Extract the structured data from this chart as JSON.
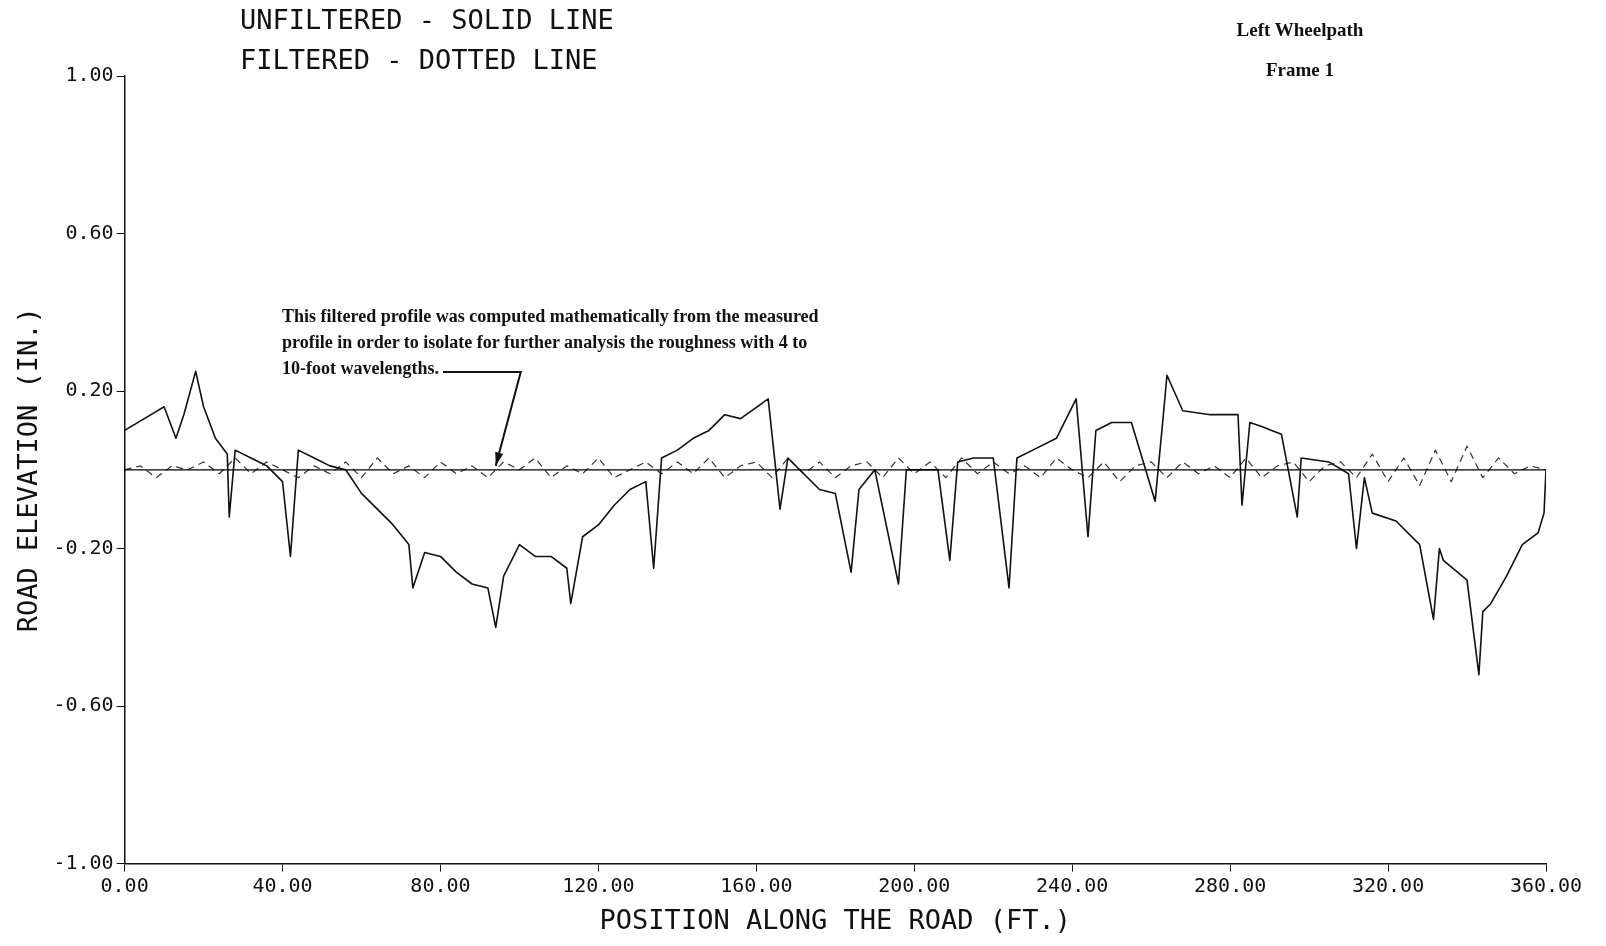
{
  "chart_data": {
    "type": "line",
    "title": "Left Wheelpath",
    "subtitle": "Frame 1",
    "xlabel": "POSITION ALONG THE ROAD (FT.)",
    "ylabel": "ROAD ELEVATION (IN.)",
    "annotations": [
      "UNFILTERED - SOLID LINE",
      "FILTERED - DOTTED LINE",
      {
        "text": "This filtered profile was computed mathematically from the measured profile in order to isolate for further analysis the roughness with 4 to 10-foot wavelengths.",
        "x": 94,
        "y": 0
      }
    ],
    "xlim": [
      0,
      360
    ],
    "xticks": [
      {
        "value": 0,
        "label": "0.00"
      },
      {
        "value": 40,
        "label": "40.00"
      },
      {
        "value": 80,
        "label": "80.00"
      },
      {
        "value": 120,
        "label": "120.00"
      },
      {
        "value": 160,
        "label": "160.00"
      },
      {
        "value": 200,
        "label": "200.00"
      },
      {
        "value": 240,
        "label": "240.00"
      },
      {
        "value": 280,
        "label": "280.00"
      },
      {
        "value": 320,
        "label": "320.00"
      },
      {
        "value": 360,
        "label": "360.00"
      }
    ],
    "ylim": [
      -1,
      1
    ],
    "yticks": [
      {
        "value": -1,
        "label": "-1.00"
      },
      {
        "value": -0.6,
        "label": "-0.60"
      },
      {
        "value": -0.2,
        "label": "-0.20"
      },
      {
        "value": 0.2,
        "label": "0.20"
      },
      {
        "value": 0.6,
        "label": "0.60"
      },
      {
        "value": 1,
        "label": "1.00"
      }
    ],
    "grid": false,
    "legend": false,
    "marker": "none",
    "ref_lines": [
      {
        "axis": "y",
        "value": 0,
        "color": "#000000"
      }
    ],
    "series": [
      {
        "color": "#111111",
        "line_style": "solid",
        "x": [
          0,
          5,
          10,
          13,
          15,
          18,
          20,
          23,
          26,
          26.5,
          28,
          32,
          36,
          40,
          42,
          44,
          48,
          52,
          56,
          60,
          64,
          68,
          72,
          73,
          76,
          80,
          84,
          88,
          92,
          94,
          96,
          100,
          104,
          108,
          112,
          113,
          116,
          120,
          124,
          128,
          132,
          134,
          136,
          140,
          144,
          148,
          152,
          156,
          163,
          166,
          168,
          172,
          176,
          180,
          184,
          186,
          190,
          196,
          198,
          202,
          206,
          209,
          211,
          215,
          220,
          224,
          226,
          230,
          236,
          241,
          244,
          246,
          250,
          255,
          261,
          263,
          264,
          268,
          275,
          282,
          283,
          285,
          288,
          293,
          297,
          298,
          305,
          310,
          312,
          314,
          316,
          322,
          328,
          331.5,
          333,
          334,
          340,
          343,
          344,
          346,
          350,
          354,
          358,
          359.5,
          360
        ],
        "values": [
          0.1,
          0.13,
          0.16,
          0.08,
          0.14,
          0.25,
          0.16,
          0.08,
          0.04,
          -0.12,
          0.05,
          0.03,
          0.01,
          -0.03,
          -0.22,
          0.05,
          0.03,
          0.01,
          0,
          -0.06,
          -0.1,
          -0.14,
          -0.19,
          -0.3,
          -0.21,
          -0.22,
          -0.26,
          -0.29,
          -0.3,
          -0.4,
          -0.27,
          -0.19,
          -0.22,
          -0.22,
          -0.25,
          -0.34,
          -0.17,
          -0.14,
          -0.09,
          -0.05,
          -0.03,
          -0.25,
          0.03,
          0.05,
          0.08,
          0.1,
          0.14,
          0.13,
          0.18,
          -0.1,
          0.03,
          -0.01,
          -0.05,
          -0.06,
          -0.26,
          -0.05,
          0,
          -0.29,
          0,
          0,
          0,
          -0.23,
          0.02,
          0.03,
          0.03,
          -0.3,
          0.03,
          0.05,
          0.08,
          0.18,
          -0.17,
          0.1,
          0.12,
          0.12,
          -0.08,
          0.13,
          0.24,
          0.15,
          0.14,
          0.14,
          -0.09,
          0.12,
          0.11,
          0.09,
          -0.12,
          0.03,
          0.02,
          -0.01,
          -0.2,
          -0.02,
          -0.11,
          -0.13,
          -0.19,
          -0.38,
          -0.2,
          -0.23,
          -0.28,
          -0.52,
          -0.36,
          -0.34,
          -0.27,
          -0.19,
          -0.16,
          -0.11,
          0
        ]
      },
      {
        "color": "#333333",
        "line_style": "dashed",
        "x": [
          0,
          4,
          8,
          12,
          16,
          20,
          24,
          28,
          32,
          36,
          40,
          44,
          48,
          52,
          56,
          60,
          64,
          68,
          72,
          76,
          80,
          84,
          88,
          92,
          96,
          100,
          104,
          108,
          112,
          116,
          120,
          124,
          128,
          132,
          136,
          140,
          144,
          148,
          152,
          156,
          160,
          164,
          168,
          172,
          176,
          180,
          184,
          188,
          192,
          196,
          200,
          204,
          208,
          212,
          216,
          220,
          224,
          228,
          232,
          236,
          240,
          244,
          248,
          252,
          256,
          260,
          264,
          268,
          272,
          276,
          280,
          284,
          288,
          292,
          296,
          300,
          304,
          308,
          312,
          316,
          320,
          324,
          328,
          332,
          336,
          340,
          344,
          348,
          352,
          356,
          360
        ],
        "values": [
          0,
          0.01,
          -0.02,
          0.01,
          0,
          0.02,
          -0.01,
          0.03,
          -0.01,
          0.02,
          0,
          -0.02,
          0.01,
          -0.01,
          0.02,
          -0.02,
          0.03,
          -0.01,
          0.01,
          -0.02,
          0.02,
          -0.01,
          0.01,
          -0.02,
          0.02,
          0,
          0.03,
          -0.02,
          0.01,
          -0.01,
          0.03,
          -0.02,
          0,
          0.02,
          -0.01,
          0.02,
          -0.01,
          0.03,
          -0.02,
          0.01,
          0.02,
          -0.02,
          0.03,
          -0.01,
          0.02,
          -0.02,
          0.01,
          0.02,
          -0.02,
          0.03,
          -0.01,
          0.02,
          -0.02,
          0.03,
          -0.01,
          0.02,
          -0.01,
          0.01,
          -0.02,
          0.03,
          0,
          -0.02,
          0.02,
          -0.03,
          0.01,
          0.02,
          -0.02,
          0.02,
          -0.01,
          0.01,
          -0.02,
          0.03,
          -0.02,
          0.01,
          0.02,
          -0.03,
          0.01,
          0.02,
          -0.02,
          0.04,
          -0.03,
          0.03,
          -0.04,
          0.05,
          -0.03,
          0.06,
          -0.02,
          0.03,
          -0.01,
          0.01,
          0
        ]
      }
    ]
  }
}
